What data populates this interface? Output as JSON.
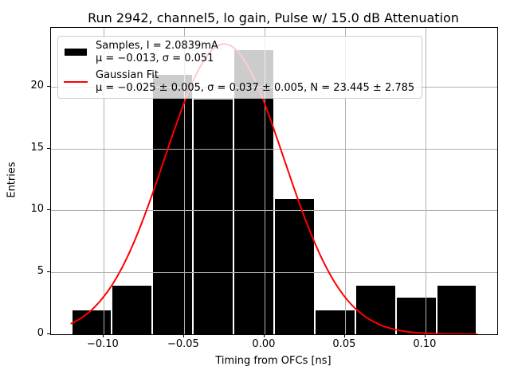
{
  "figure": {
    "title": "Run 2942, channel5, lo gain, Pulse w/ 15.0 dB Attenuation",
    "xlabel": "Timing from OFCs [ns]",
    "ylabel": "Entries"
  },
  "legend": {
    "entries": [
      {
        "handle": "samples-swatch",
        "line1": "Samples, I = 2.0839mA",
        "line2": "μ = −0.013, σ = 0.051"
      },
      {
        "handle": "gaussian-fit-line",
        "line1": "Gaussian Fit",
        "line2": "μ = −0.025 ± 0.005, σ = 0.037 ± 0.005, N = 23.445 ± 2.785"
      }
    ]
  },
  "chart_data": {
    "type": "bar",
    "subtype": "histogram_with_gaussian_fit",
    "title": "Run 2942, channel5, lo gain, Pulse w/ 15.0 dB Attenuation",
    "xlabel": "Timing from OFCs [ns]",
    "ylabel": "Entries",
    "bin_edges": [
      -0.12,
      -0.0948,
      -0.0696,
      -0.0444,
      -0.0192,
      0.006,
      0.0312,
      0.0564,
      0.0816,
      0.1068,
      0.132
    ],
    "counts": [
      2,
      4,
      21,
      19,
      23,
      11,
      2,
      4,
      3,
      4
    ],
    "sample_stats": {
      "mu": -0.013,
      "sigma": 0.051,
      "current_mA": 2.0839
    },
    "fit": {
      "mu": -0.025,
      "mu_err": 0.005,
      "sigma": 0.037,
      "sigma_err": 0.005,
      "N": 23.445,
      "N_err": 2.785,
      "x_min": -0.12,
      "x_max": 0.132
    },
    "x_ticks": [
      -0.1,
      -0.05,
      0.0,
      0.05,
      0.1
    ],
    "x_tick_labels": [
      "−0.10",
      "−0.05",
      "0.00",
      "0.05",
      "0.10"
    ],
    "y_ticks": [
      0,
      5,
      10,
      15,
      20
    ],
    "y_tick_labels": [
      "0",
      "5",
      "10",
      "15",
      "20"
    ],
    "xlim": [
      -0.1326,
      0.1446
    ],
    "ylim": [
      0,
      24.75
    ],
    "grid": true,
    "grid_above_bars": true,
    "legend_position": "upper left",
    "colors": {
      "bar": "#000000",
      "bar_edge": "#ffffff",
      "fit_line": "#ff0000",
      "grid": "#b0b0b0",
      "spine": "#000000",
      "background": "#ffffff"
    }
  }
}
